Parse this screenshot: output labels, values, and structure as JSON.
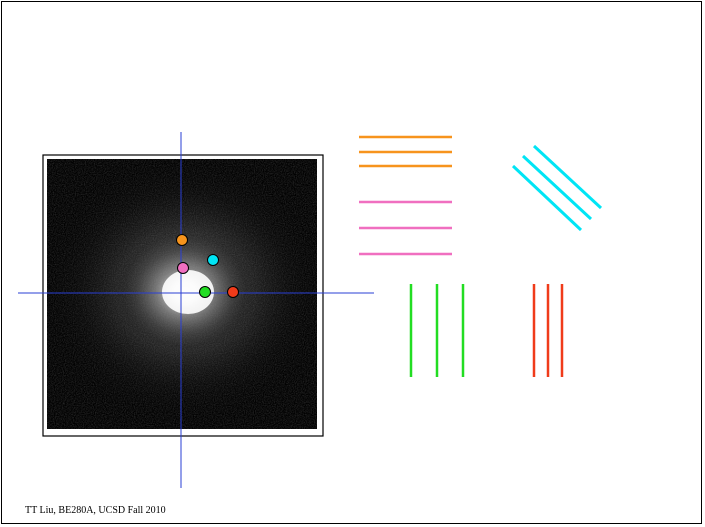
{
  "footer": {
    "text": "TT Liu, BE280A, UCSD Fall 2010"
  },
  "colors": {
    "orange": "#f7941d",
    "pink": "#f06fc0",
    "cyan": "#00e5f5",
    "green": "#22dd22",
    "red": "#f03b1a",
    "axis": "#2a3fd4"
  }
}
